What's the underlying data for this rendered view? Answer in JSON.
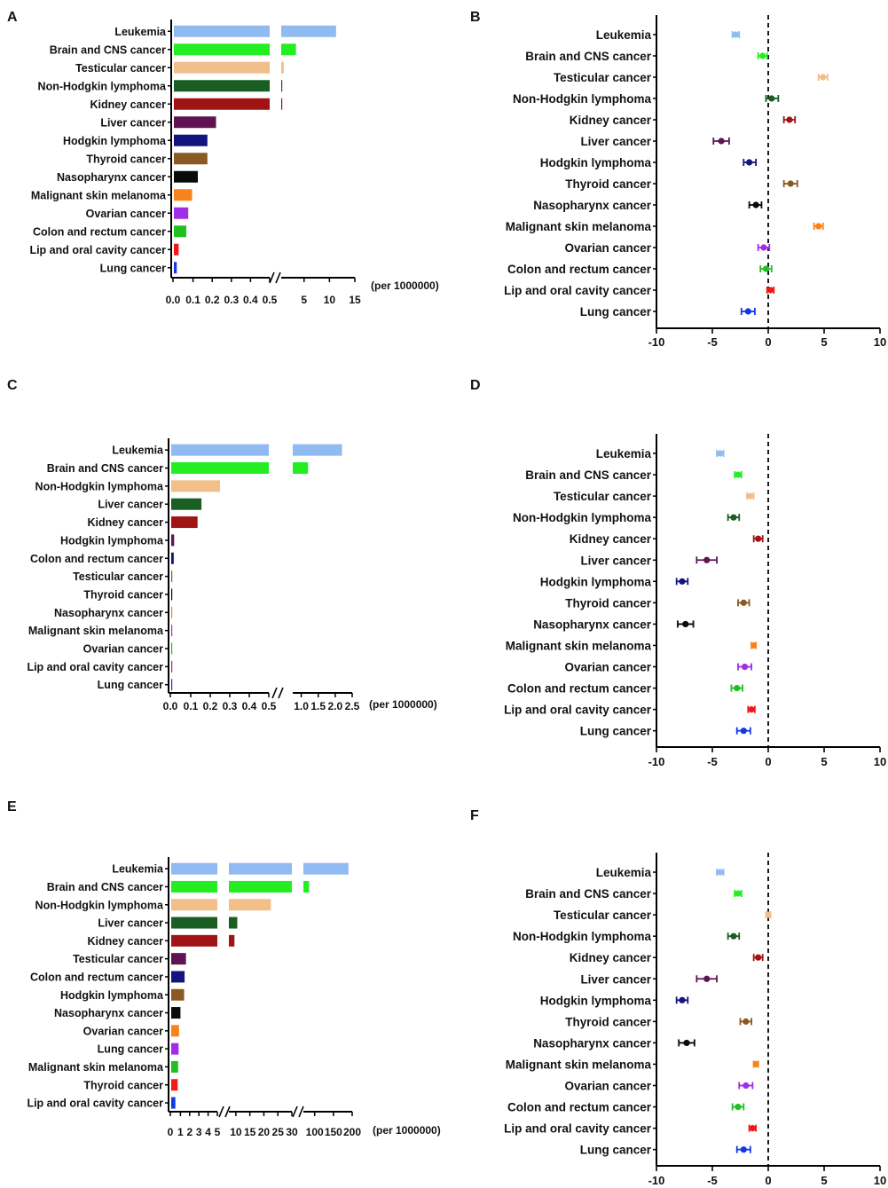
{
  "colors": {
    "Leukemia": "#8fbbf2",
    "Brain and CNS cancer": "#22ee22",
    "Testicular cancer": "#f2be8a",
    "Non-Hodgkin lymphoma": "#1a5e24",
    "Kidney cancer": "#a01416",
    "Liver cancer": "#5e1450",
    "Hodgkin lymphoma": "#14147e",
    "Thyroid cancer": "#8a5a22",
    "Nasopharynx cancer": "#0a0a0a",
    "Malignant skin melanoma": "#f7841a",
    "Ovarian cancer": "#a02ee6",
    "Colon and rectum cancer": "#20c020",
    "Lip and oral cavity cancer": "#f21818",
    "Lung cancer": "#1438e6"
  },
  "chart_data": [
    {
      "id": "A",
      "panel_label": "A",
      "type": "bar",
      "orientation": "horizontal",
      "unit_label": "(per 1000000)",
      "x_ticks": [
        "0.0",
        "0.1",
        "0.2",
        "0.3",
        "0.4",
        "0.5",
        "5",
        "10",
        "15"
      ],
      "x_segments": [
        {
          "range": [
            0,
            0.5
          ],
          "ticks": [
            0,
            0.1,
            0.2,
            0.3,
            0.4,
            0.5
          ]
        },
        {
          "range": [
            0.5,
            15
          ],
          "ticks": [
            5,
            10,
            15
          ]
        }
      ],
      "categories": [
        "Leukemia",
        "Brain and CNS cancer",
        "Testicular cancer",
        "Non-Hodgkin lymphoma",
        "Kidney cancer",
        "Liver cancer",
        "Hodgkin lymphoma",
        "Thyroid cancer",
        "Nasopharynx cancer",
        "Malignant skin melanoma",
        "Ovarian cancer",
        "Colon and rectum cancer",
        "Lip and oral cavity cancer",
        "Lung cancer"
      ],
      "values": [
        11.3,
        3.4,
        1.0,
        0.7,
        0.6,
        0.22,
        0.175,
        0.175,
        0.125,
        0.095,
        0.075,
        0.065,
        0.025,
        0.015
      ]
    },
    {
      "id": "B",
      "panel_label": "B",
      "type": "scatter",
      "subtype": "forest",
      "xlim": [
        -10,
        10
      ],
      "x_ticks": [
        "-10",
        "-5",
        "0",
        "5",
        "10"
      ],
      "categories": [
        "Leukemia",
        "Brain and CNS cancer",
        "Testicular cancer",
        "Non-Hodgkin lymphoma",
        "Kidney cancer",
        "Liver cancer",
        "Hodgkin lymphoma",
        "Thyroid cancer",
        "Nasopharynx cancer",
        "Malignant skin melanoma",
        "Ovarian cancer",
        "Colon and rectum cancer",
        "Lip and oral cavity cancer",
        "Lung cancer"
      ],
      "estimates": [
        -2.9,
        -0.5,
        4.9,
        0.3,
        1.9,
        -4.2,
        -1.7,
        2.0,
        -1.1,
        4.5,
        -0.4,
        -0.2,
        0.2,
        -1.8
      ],
      "lower": [
        -3.2,
        -0.9,
        4.5,
        -0.2,
        1.4,
        -4.9,
        -2.2,
        1.4,
        -1.7,
        4.1,
        -0.9,
        -0.7,
        -0.1,
        -2.4
      ],
      "upper": [
        -2.6,
        -0.1,
        5.3,
        0.9,
        2.4,
        -3.5,
        -1.1,
        2.6,
        -0.6,
        4.9,
        0.1,
        0.3,
        0.5,
        -1.2
      ]
    },
    {
      "id": "C",
      "panel_label": "C",
      "type": "bar",
      "orientation": "horizontal",
      "unit_label": "(per 1000000)",
      "x_ticks": [
        "0.0",
        "0.1",
        "0.2",
        "0.3",
        "0.4",
        "0.5",
        "1.0",
        "1.5",
        "2.0",
        "2.5"
      ],
      "x_segments": [
        {
          "range": [
            0,
            0.5
          ],
          "ticks": [
            0,
            0.1,
            0.2,
            0.3,
            0.4,
            0.5
          ]
        },
        {
          "range": [
            0.75,
            2.5
          ],
          "ticks": [
            1.0,
            1.5,
            2.0,
            2.5
          ]
        }
      ],
      "categories": [
        "Leukemia",
        "Brain and CNS cancer",
        "Non-Hodgkin lymphoma",
        "Liver cancer",
        "Kidney cancer",
        "Hodgkin lymphoma",
        "Colon and rectum cancer",
        "Testicular cancer",
        "Thyroid cancer",
        "Nasopharynx cancer",
        "Malignant skin melanoma",
        "Ovarian cancer",
        "Lip and oral cavity cancer",
        "Lung cancer"
      ],
      "values": [
        2.2,
        1.2,
        0.25,
        0.155,
        0.135,
        0.015,
        0.013,
        0.004,
        0.004,
        0.003,
        0.003,
        0.003,
        0.003,
        0.002
      ],
      "bar_colors": [
        "Leukemia",
        "Brain and CNS cancer",
        "Testicular cancer",
        "Non-Hodgkin lymphoma",
        "Kidney cancer",
        "Liver cancer",
        "Hodgkin lymphoma",
        "Thyroid cancer",
        "Nasopharynx cancer",
        "Malignant skin melanoma",
        "Ovarian cancer",
        "Colon and rectum cancer",
        "Lip and oral cavity cancer",
        "Lung cancer"
      ]
    },
    {
      "id": "D",
      "panel_label": "D",
      "type": "scatter",
      "subtype": "forest",
      "xlim": [
        -10,
        10
      ],
      "x_ticks": [
        "-10",
        "-5",
        "0",
        "5",
        "10"
      ],
      "categories": [
        "Leukemia",
        "Brain and CNS cancer",
        "Testicular cancer",
        "Non-Hodgkin lymphoma",
        "Kidney cancer",
        "Liver cancer",
        "Hodgkin lymphoma",
        "Thyroid cancer",
        "Nasopharynx cancer",
        "Malignant skin melanoma",
        "Ovarian cancer",
        "Colon and rectum cancer",
        "Lip and oral cavity cancer",
        "Lung cancer"
      ],
      "estimates": [
        -4.3,
        -2.7,
        -1.6,
        -3.1,
        -0.9,
        -5.5,
        -7.7,
        -2.2,
        -7.4,
        -1.3,
        -2.1,
        -2.8,
        -1.5,
        -2.2
      ],
      "lower": [
        -4.6,
        -3.0,
        -1.9,
        -3.6,
        -1.3,
        -6.4,
        -8.2,
        -2.7,
        -8.1,
        -1.5,
        -2.7,
        -3.3,
        -1.8,
        -2.8
      ],
      "upper": [
        -4.0,
        -2.4,
        -1.3,
        -2.6,
        -0.5,
        -4.6,
        -7.2,
        -1.7,
        -6.7,
        -1.1,
        -1.5,
        -2.3,
        -1.2,
        -1.6
      ]
    },
    {
      "id": "E",
      "panel_label": "E",
      "type": "bar",
      "orientation": "horizontal",
      "unit_label": "(per 1000000)",
      "x_ticks": [
        "0",
        "1",
        "2",
        "3",
        "4",
        "5",
        "10",
        "15",
        "20",
        "25",
        "30",
        "100",
        "150",
        "200"
      ],
      "x_segments": [
        {
          "range": [
            0,
            5
          ],
          "ticks": [
            0,
            1,
            2,
            3,
            4,
            5
          ]
        },
        {
          "range": [
            7.5,
            30
          ],
          "ticks": [
            10,
            15,
            20,
            25,
            30
          ]
        },
        {
          "range": [
            70,
            200
          ],
          "ticks": [
            100,
            150,
            200
          ]
        }
      ],
      "categories": [
        "Leukemia",
        "Brain and CNS cancer",
        "Non-Hodgkin lymphoma",
        "Liver cancer",
        "Kidney cancer",
        "Testicular cancer",
        "Colon and rectum cancer",
        "Hodgkin lymphoma",
        "Nasopharynx cancer",
        "Ovarian cancer",
        "Lung cancer",
        "Malignant skin melanoma",
        "Thyroid cancer",
        "Lip and oral cavity cancer"
      ],
      "values": [
        190,
        85,
        22.5,
        10.5,
        9.5,
        1.6,
        1.45,
        1.4,
        1.0,
        0.85,
        0.8,
        0.75,
        0.7,
        0.45
      ],
      "bar_colors": [
        "Leukemia",
        "Brain and CNS cancer",
        "Testicular cancer",
        "Non-Hodgkin lymphoma",
        "Kidney cancer",
        "Liver cancer",
        "Hodgkin lymphoma",
        "Thyroid cancer",
        "Nasopharynx cancer",
        "Malignant skin melanoma",
        "Ovarian cancer",
        "Colon and rectum cancer",
        "Lip and oral cavity cancer",
        "Lung cancer"
      ]
    },
    {
      "id": "F",
      "panel_label": "F",
      "type": "scatter",
      "subtype": "forest",
      "xlim": [
        -10,
        10
      ],
      "x_ticks": [
        "-10",
        "-5",
        "0",
        "5",
        "10"
      ],
      "categories": [
        "Leukemia",
        "Brain and CNS cancer",
        "Testicular cancer",
        "Non-Hodgkin lymphoma",
        "Kidney cancer",
        "Liver cancer",
        "Hodgkin lymphoma",
        "Thyroid cancer",
        "Nasopharynx cancer",
        "Malignant skin melanoma",
        "Ovarian cancer",
        "Colon and rectum cancer",
        "Lip and oral cavity cancer",
        "Lung cancer"
      ],
      "estimates": [
        -4.3,
        -2.7,
        0.0,
        -3.1,
        -0.9,
        -5.5,
        -7.7,
        -2.0,
        -7.3,
        -1.1,
        -2.0,
        -2.7,
        -1.4,
        -2.2
      ],
      "lower": [
        -4.6,
        -3.0,
        -0.2,
        -3.6,
        -1.3,
        -6.4,
        -8.2,
        -2.5,
        -8.0,
        -1.3,
        -2.6,
        -3.2,
        -1.7,
        -2.8
      ],
      "upper": [
        -4.0,
        -2.4,
        0.2,
        -2.6,
        -0.5,
        -4.6,
        -7.2,
        -1.5,
        -6.6,
        -0.9,
        -1.4,
        -2.2,
        -1.1,
        -1.6
      ]
    }
  ]
}
